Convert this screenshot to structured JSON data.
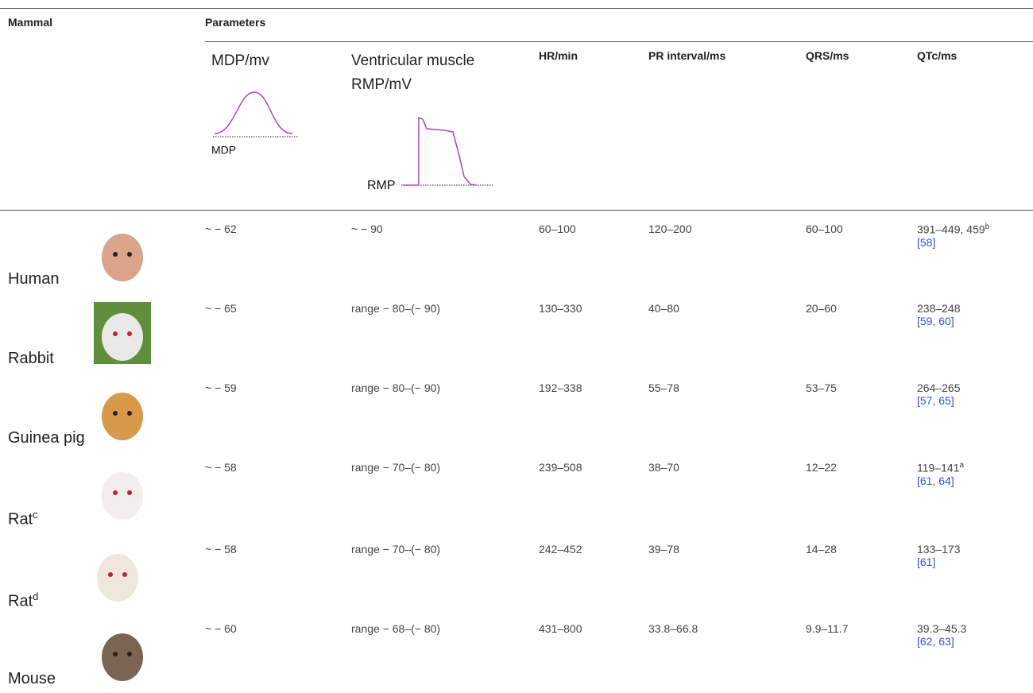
{
  "header": {
    "mammal": "Mammal",
    "parameters": "Parameters",
    "columns": [
      "MDP/mv",
      "Ventricular muscle RMP/mV",
      "HR/min",
      "PR interval/ms",
      "QRS/ms",
      "QTc/ms"
    ],
    "mdp_icon_label": "MDP",
    "rmp_icon_label": "RMP"
  },
  "table": {
    "rows": [
      {
        "mammal": "Human",
        "mammal_sup": null,
        "cells": [
          "~ − 62",
          "~ − 90",
          "60–100",
          "120–200",
          "60–100",
          "391–449, 459"
        ],
        "qtc_sup": "b",
        "refs": "[58]"
      },
      {
        "mammal": "Rabbit",
        "mammal_sup": null,
        "cells": [
          "~ − 65",
          "range − 80–(− 90)",
          "130–330",
          "40–80",
          "20–60",
          "238–248"
        ],
        "qtc_sup": null,
        "refs": "[59, 60]"
      },
      {
        "mammal": "Guinea pig",
        "mammal_sup": null,
        "cells": [
          "~ − 59",
          "range − 80–(− 90)",
          "192–338",
          "55–78",
          "53–75",
          "264–265"
        ],
        "qtc_sup": null,
        "refs": "[57, 65]"
      },
      {
        "mammal": "Rat",
        "mammal_sup": "c",
        "cells": [
          "~ − 58",
          "range − 70–(− 80)",
          "239–508",
          "38–70",
          "12–22",
          "119–141"
        ],
        "qtc_sup": "a",
        "refs": "[61, 64]"
      },
      {
        "mammal": "Rat",
        "mammal_sup": "d",
        "cells": [
          "~ − 58",
          "range − 70–(− 80)",
          "242–452",
          "39–78",
          "14–28",
          "133–173"
        ],
        "qtc_sup": null,
        "refs": "[61]"
      },
      {
        "mammal": "Mouse",
        "mammal_sup": null,
        "cells": [
          "~ − 60",
          "range − 68–(− 80)",
          "431–800",
          "33.8–66.8",
          "9.9–11.7",
          "39.3–45.3"
        ],
        "qtc_sup": null,
        "refs": "[62, 63]"
      }
    ]
  }
}
